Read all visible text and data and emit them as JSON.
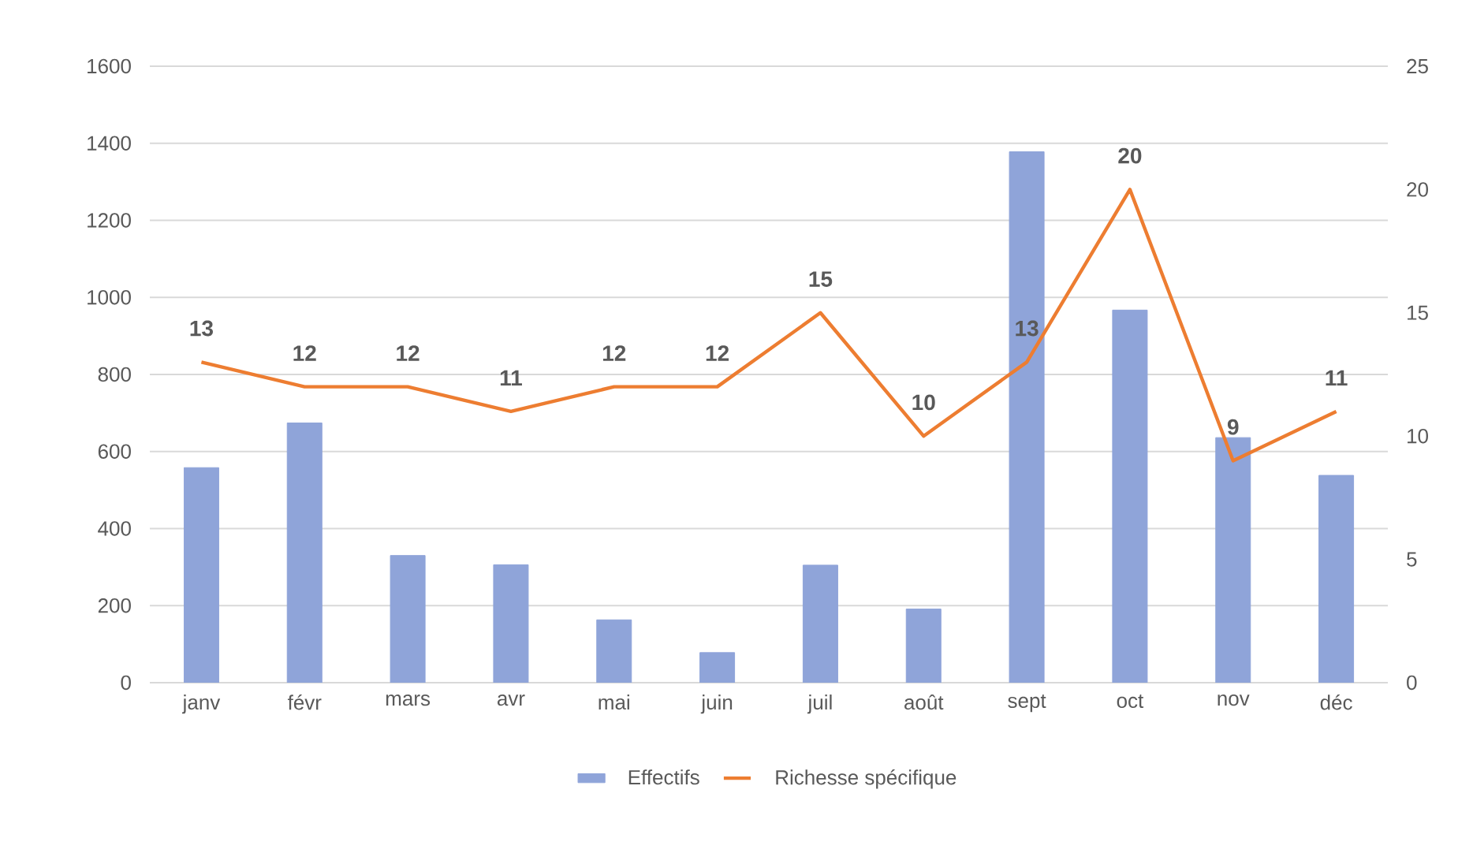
{
  "chart_data": {
    "type": "bar",
    "categories": [
      "janv",
      "févr",
      "mars",
      "avr",
      "mai",
      "juin",
      "juil",
      "août",
      "sept",
      "oct",
      "nov",
      "déc"
    ],
    "series": [
      {
        "name": "Effectifs",
        "color": "#8fa4d9",
        "values": [
          558,
          674,
          330,
          306,
          163,
          78,
          305,
          191,
          1378,
          967,
          636,
          538
        ]
      },
      {
        "name": "Richesse spécifique",
        "type": "line",
        "axis": "y2",
        "color": "#ed7d31",
        "marker": "none",
        "values": [
          13,
          12,
          12,
          11,
          12,
          12,
          15,
          10,
          13,
          20,
          9,
          11
        ],
        "value_labels": [
          "13",
          "12",
          "12",
          "11",
          "12",
          "12",
          "15",
          "10",
          "13",
          "20",
          "9",
          "11"
        ]
      }
    ],
    "ylim": [
      0,
      1600
    ],
    "yticks": [
      0,
      200,
      400,
      600,
      800,
      1000,
      1200,
      1400,
      1600
    ],
    "y2lim": [
      0,
      25
    ],
    "y2ticks": [
      0,
      5,
      10,
      15,
      20,
      25
    ],
    "grid": "y",
    "legend": "bottom"
  }
}
